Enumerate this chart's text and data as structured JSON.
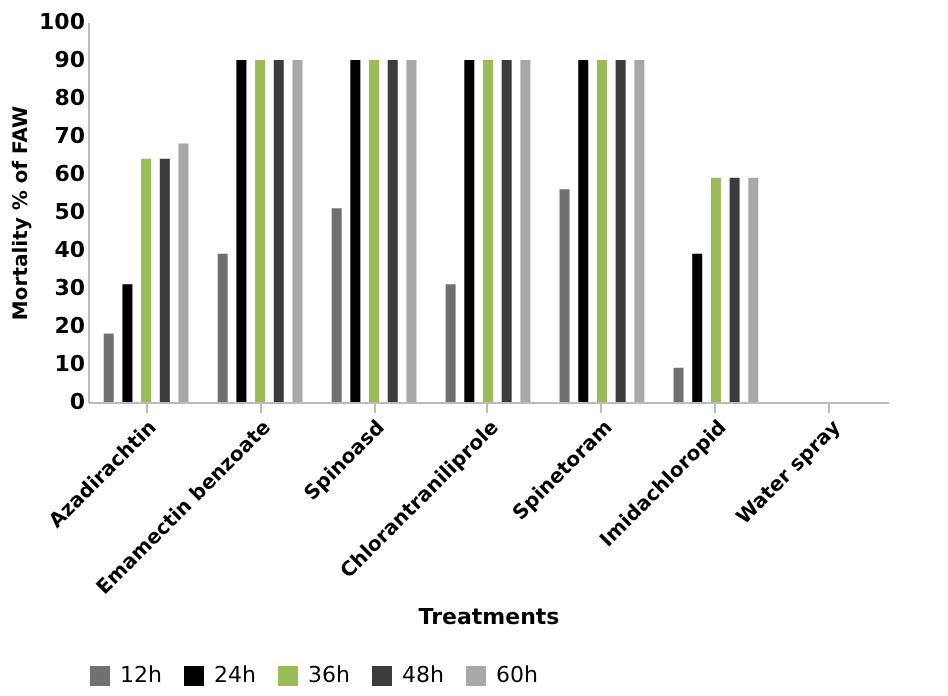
{
  "chart_data": {
    "type": "bar",
    "xlabel": "Treatments",
    "ylabel": "Mortality % of FAW",
    "categories": [
      "Azadirachtin",
      "Emamectin benzoate",
      "Spinoasd",
      "Chlorantraniliprole",
      "Spinetoram",
      "Imidachloropid",
      "Water spray"
    ],
    "series": [
      {
        "name": "12h",
        "color": "#707070",
        "values": [
          18,
          39,
          51,
          31,
          56,
          9,
          0
        ]
      },
      {
        "name": "24h",
        "color": "#000000",
        "values": [
          31,
          90,
          90,
          90,
          90,
          39,
          0
        ]
      },
      {
        "name": "36h",
        "color": "#9bbb59",
        "values": [
          64,
          90,
          90,
          90,
          90,
          59,
          0
        ]
      },
      {
        "name": "48h",
        "color": "#3c3c3c",
        "values": [
          64,
          90,
          90,
          90,
          90,
          59,
          0
        ]
      },
      {
        "name": "60h",
        "color": "#a8a8a8",
        "values": [
          68,
          90,
          90,
          90,
          90,
          59,
          0
        ]
      }
    ],
    "ylim": [
      0,
      100
    ],
    "yticks": [
      0,
      10,
      20,
      30,
      40,
      50,
      60,
      70,
      80,
      90,
      100
    ],
    "grid": false,
    "legend": "bottom"
  }
}
